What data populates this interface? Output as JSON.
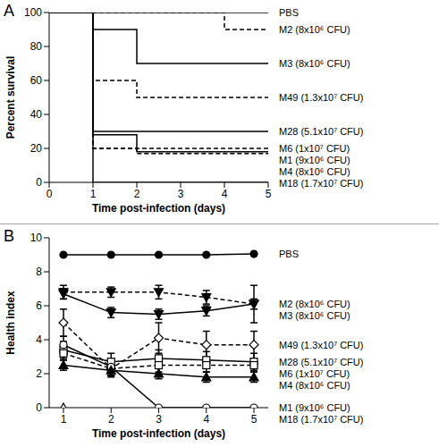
{
  "chart_data": [
    {
      "type": "step",
      "title": "A",
      "xlabel": "Time post-infection (days)",
      "ylabel": "Percent survival",
      "x": [
        0,
        1,
        2,
        3,
        4,
        5
      ],
      "xlim": [
        0,
        5
      ],
      "xticks": [
        0,
        1,
        2,
        3,
        4,
        5
      ],
      "ylim": [
        0,
        100
      ],
      "yticks": [
        0,
        20,
        40,
        60,
        80,
        100
      ],
      "grid": false,
      "series": [
        {
          "name": "PBS",
          "color": "#000000",
          "line_style": "solid",
          "values": [
            100,
            100,
            100,
            100,
            100,
            100
          ]
        },
        {
          "name": "M2 (8x10⁶ CFU)",
          "color": "#000000",
          "line_style": "dashed",
          "values": [
            100,
            100,
            100,
            100,
            90,
            90
          ]
        },
        {
          "name": "M3 (8x10⁶ CFU)",
          "color": "#000000",
          "line_style": "solid",
          "values": [
            100,
            90,
            70,
            70,
            70,
            70
          ]
        },
        {
          "name": "M49 (1.3x10⁷ CFU)",
          "color": "#000000",
          "line_style": "dashed",
          "values": [
            100,
            60,
            50,
            50,
            50,
            50
          ]
        },
        {
          "name": "M28 (5.1x10⁷ CFU)",
          "color": "#000000",
          "line_style": "solid",
          "values": [
            100,
            30,
            30,
            30,
            30,
            30
          ]
        },
        {
          "name": "M6 (1x10⁷ CFU)",
          "color": "#000000",
          "line_style": "dashed",
          "values": [
            100,
            20,
            20,
            20,
            20,
            20
          ]
        },
        {
          "name": "M1 (9x10⁶ CFU)",
          "color": "#000000",
          "line_style": "solid",
          "values": [
            100,
            28,
            18,
            18,
            18,
            18
          ]
        },
        {
          "name": "M4 (8x10⁶ CFU)",
          "color": "#000000",
          "line_style": "dashed",
          "values": [
            100,
            20,
            17,
            17,
            17,
            17
          ]
        },
        {
          "name": "M18 (1.7x10⁷ CFU)",
          "color": "#000000",
          "line_style": "solid",
          "values": [
            100,
            0,
            0,
            0,
            0,
            0
          ]
        }
      ]
    },
    {
      "type": "line",
      "title": "B",
      "xlabel": "Time post-infection (days)",
      "ylabel": "Health index",
      "x": [
        1,
        2,
        3,
        4,
        5
      ],
      "xlim": [
        0.7,
        5.3
      ],
      "xticks": [
        1,
        2,
        3,
        4,
        5
      ],
      "ylim": [
        0,
        10
      ],
      "yticks": [
        0,
        2,
        4,
        6,
        8,
        10
      ],
      "grid": false,
      "series": [
        {
          "name": "PBS",
          "color": "#000000",
          "line_style": "solid",
          "marker": "circle",
          "values": [
            9,
            9,
            9,
            9,
            9.05
          ],
          "errors": [
            0,
            0,
            0,
            0,
            0
          ]
        },
        {
          "name": "M2 (8x10⁶ CFU)",
          "color": "#000000",
          "line_style": "dashed",
          "marker": "triangle_down",
          "values": [
            6.8,
            6.8,
            6.8,
            6.5,
            6.1
          ],
          "errors": [
            0.4,
            0.3,
            0.4,
            0.4,
            1.1
          ]
        },
        {
          "name": "M3 (8x10⁶ CFU)",
          "color": "#000000",
          "line_style": "solid",
          "marker": "triangle_down",
          "values": [
            6.7,
            5.6,
            5.5,
            5.7,
            6.1
          ],
          "errors": [
            0.3,
            0.3,
            0.3,
            0.3,
            0.3
          ]
        },
        {
          "name": "M49 (1.3x10⁷ CFU)",
          "color": "#000000",
          "line_style": "dashed",
          "marker": "diamond_open",
          "values": [
            5.0,
            2.3,
            4.1,
            3.7,
            3.7
          ],
          "errors": [
            0.8,
            0.5,
            0.9,
            0.8,
            0.8
          ]
        },
        {
          "name": "M28 (5.1x10⁷ CFU)",
          "color": "#000000",
          "line_style": "solid",
          "marker": "square_open",
          "values": [
            3.4,
            2.7,
            2.9,
            2.8,
            2.7
          ],
          "errors": [
            0.5,
            0.5,
            0.5,
            0.5,
            0.5
          ]
        },
        {
          "name": "M6 (1x10⁷ CFU)",
          "color": "#000000",
          "line_style": "dashed",
          "marker": "square_open",
          "values": [
            3.2,
            2.3,
            2.5,
            2.5,
            2.5
          ],
          "errors": [
            0.4,
            0.4,
            0.4,
            0.4,
            0.4
          ]
        },
        {
          "name": "M1 (9x10⁶ CFU)",
          "color": "#000000",
          "line_style": "solid",
          "marker": "circle_open",
          "values": [
            3.7,
            2.4,
            0,
            0,
            0
          ],
          "errors": [
            0.5,
            0.5,
            0,
            0,
            0
          ]
        },
        {
          "name": "M4 (8x10⁶ CFU)",
          "color": "#000000",
          "line_style": "solid",
          "marker": "triangle",
          "values": [
            2.5,
            2.2,
            2.0,
            1.8,
            1.8
          ],
          "errors": [
            0.3,
            0.3,
            0.3,
            0.3,
            0.3
          ]
        },
        {
          "name": "M18 (1.7x10⁷ CFU)",
          "color": "#000000",
          "line_style": "solid",
          "marker": "triangle_open",
          "values": [
            0,
            null,
            null,
            null,
            null
          ],
          "errors": [
            0,
            null,
            null,
            null,
            null
          ]
        }
      ]
    }
  ]
}
